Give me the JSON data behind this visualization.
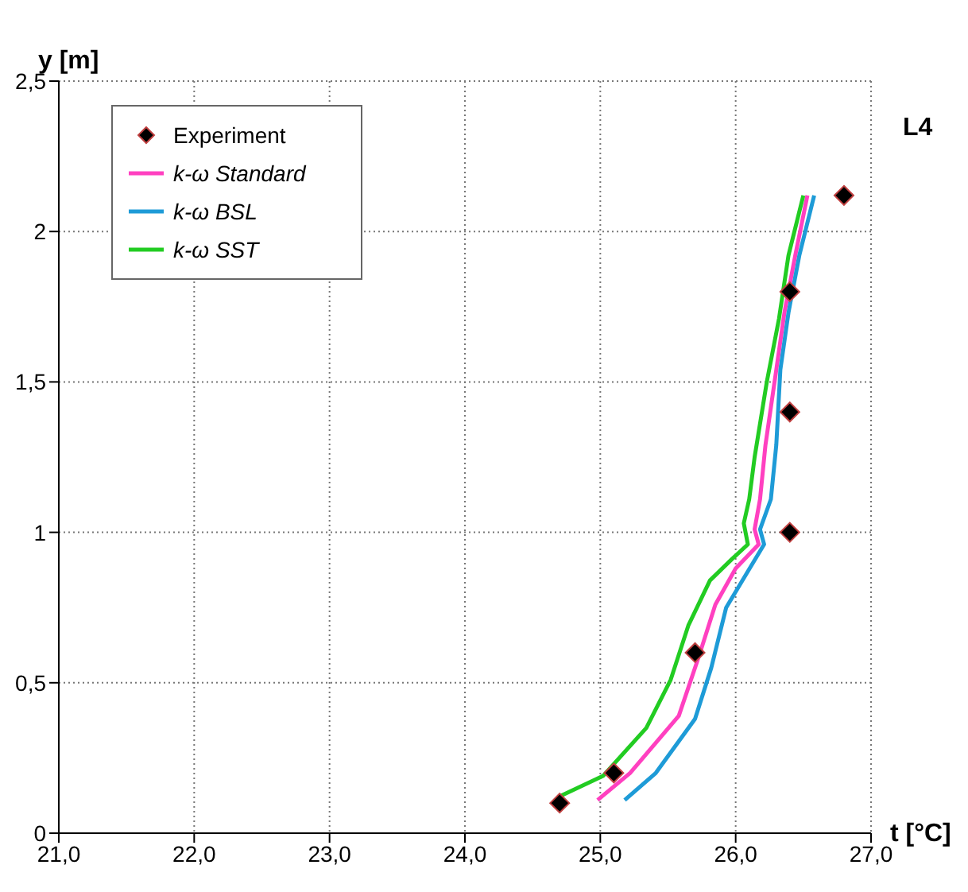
{
  "chart_data": {
    "type": "line",
    "ylabel": "y [m]",
    "xlabel": "t [°C]",
    "annotations": [
      "L4"
    ],
    "xlim": [
      21,
      27
    ],
    "xticks": [
      {
        "value": 21,
        "label": "21,0"
      },
      {
        "value": 22,
        "label": "22,0"
      },
      {
        "value": 23,
        "label": "23,0"
      },
      {
        "value": 24,
        "label": "24,0"
      },
      {
        "value": 25,
        "label": "25,0"
      },
      {
        "value": 26,
        "label": "26,0"
      },
      {
        "value": 27,
        "label": "27,0"
      }
    ],
    "ylim": [
      0,
      2.5
    ],
    "yticks": [
      0,
      {
        "value": 0.5,
        "label": "0,5"
      },
      1,
      {
        "value": 1.5,
        "label": "1,5"
      },
      2,
      {
        "value": 2.5,
        "label": "2,5"
      }
    ],
    "grid": true,
    "legend": "top left",
    "series": [
      {
        "name": "Experiment",
        "type": "scatter",
        "marker": "diamond",
        "color": "#000000",
        "x": [
          24.7,
          25.1,
          25.7,
          26.4,
          26.4,
          26.4,
          26.8
        ],
        "values": [
          0.1,
          0.2,
          0.6,
          1.0,
          1.4,
          1.8,
          2.12
        ]
      },
      {
        "name": "k-ω Standard",
        "color": "#ff40c0",
        "x": [
          24.98,
          25.22,
          25.58,
          25.73,
          25.85,
          26.0,
          26.17,
          26.14,
          26.18,
          26.22,
          26.3,
          26.36,
          26.44,
          26.53
        ],
        "values": [
          0.11,
          0.2,
          0.39,
          0.59,
          0.76,
          0.88,
          0.96,
          1.01,
          1.11,
          1.29,
          1.54,
          1.73,
          1.92,
          2.12
        ]
      },
      {
        "name": "k-ω BSL",
        "color": "#1e9bd7",
        "x": [
          25.18,
          25.41,
          25.7,
          25.82,
          25.93,
          26.09,
          26.21,
          26.18,
          26.26,
          26.3,
          26.33,
          26.39,
          26.47,
          26.58
        ],
        "values": [
          0.11,
          0.2,
          0.38,
          0.55,
          0.75,
          0.87,
          0.96,
          1.01,
          1.11,
          1.29,
          1.54,
          1.73,
          1.92,
          2.12
        ]
      },
      {
        "name": "k-ω SST",
        "color": "#22cc22",
        "x": [
          24.69,
          25.02,
          25.34,
          25.52,
          25.65,
          25.81,
          25.97,
          26.09,
          26.06,
          26.1,
          26.14,
          26.23,
          26.32,
          26.39,
          26.5
        ],
        "values": [
          0.12,
          0.19,
          0.35,
          0.51,
          0.69,
          0.84,
          0.91,
          0.96,
          1.03,
          1.11,
          1.25,
          1.5,
          1.71,
          1.92,
          2.12
        ]
      }
    ]
  }
}
